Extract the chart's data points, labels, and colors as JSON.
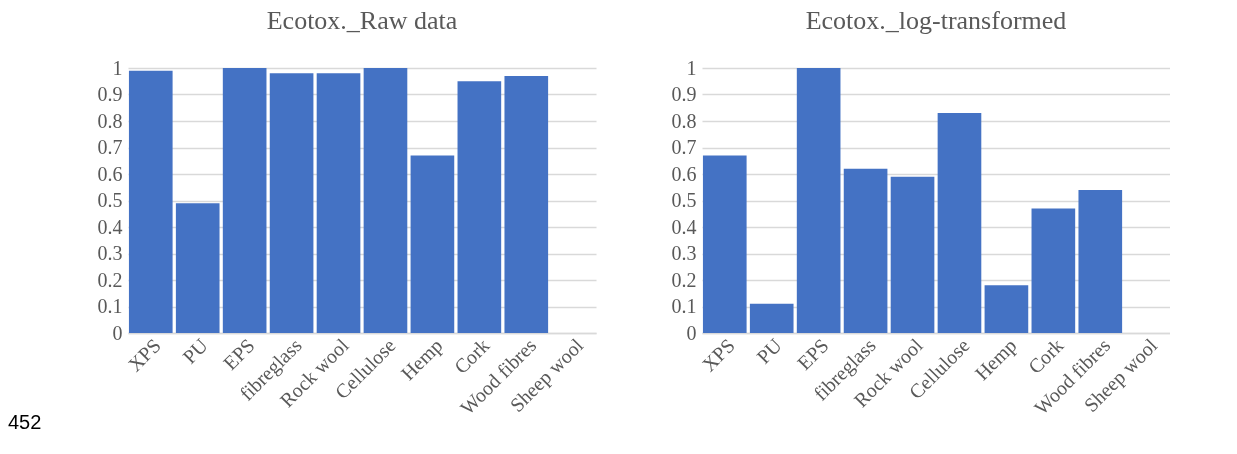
{
  "chart_data": [
    {
      "type": "bar",
      "title": "Ecotox._Raw data",
      "categories": [
        "XPS",
        "PU",
        "EPS",
        "fibreglass",
        "Rock wool",
        "Cellulose",
        "Hemp",
        "Cork",
        "Wood fibres",
        "Sheep wool"
      ],
      "values": [
        0.99,
        0.49,
        1.0,
        0.98,
        0.98,
        1.0,
        0.67,
        0.95,
        0.97,
        0
      ],
      "color": "#4472c4",
      "ylim": [
        0,
        1
      ],
      "yticks": [
        0,
        0.1,
        0.2,
        0.3,
        0.4,
        0.5,
        0.6,
        0.7,
        0.8,
        0.9,
        1
      ],
      "grid": "y",
      "annotations": [
        "452"
      ]
    },
    {
      "type": "bar",
      "title": "Ecotox._log-transformed",
      "categories": [
        "XPS",
        "PU",
        "EPS",
        "fibreglass",
        "Rock wool",
        "Cellulose",
        "Hemp",
        "Cork",
        "Wood fibres",
        "Sheep wool"
      ],
      "values": [
        0.67,
        0.11,
        1.0,
        0.62,
        0.59,
        0.83,
        0.18,
        0.47,
        0.54,
        0
      ],
      "color": "#4472c4",
      "ylim": [
        0,
        1
      ],
      "yticks": [
        0,
        0.1,
        0.2,
        0.3,
        0.4,
        0.5,
        0.6,
        0.7,
        0.8,
        0.9,
        1
      ],
      "grid": "y"
    }
  ]
}
